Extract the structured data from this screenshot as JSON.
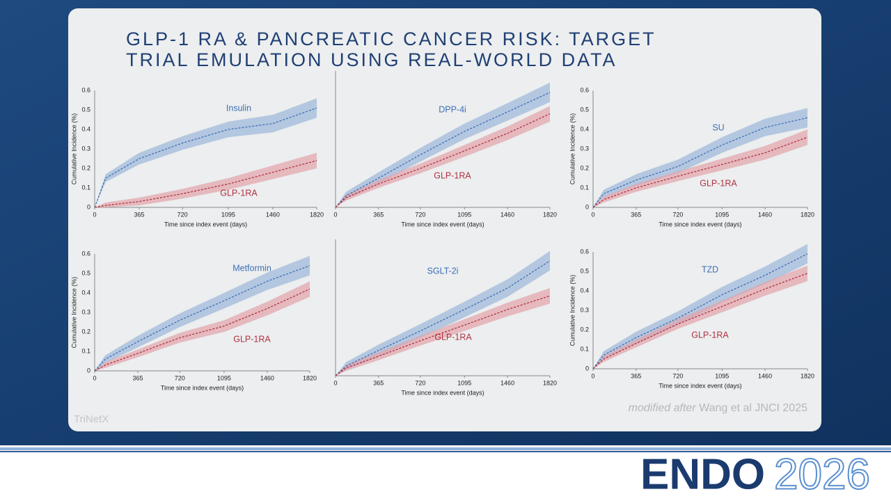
{
  "title": "GLP-1 RA & PANCREATIC CANCER RISK: TARGET TRIAL EMULATION USING REAL-WORLD DATA",
  "source_prefix": "modified after",
  "source": "Wang et al JNCI 2025",
  "watermark": "TriNetX",
  "logo": {
    "name": "ENDO",
    "year": "2026"
  },
  "chart_data": [
    {
      "type": "line",
      "x_label": "Time since index event (days)",
      "y_label": "Cumulative Incidence (%)",
      "x": [
        0,
        90,
        365,
        720,
        1095,
        1460,
        1820
      ],
      "xlim": [
        0,
        1820
      ],
      "xticks": [
        0,
        365,
        720,
        1095,
        1460,
        1820
      ],
      "ylim": [
        0,
        0.6
      ],
      "yticks": [
        0,
        0.1,
        0.2,
        0.3,
        0.4,
        0.5,
        0.6
      ],
      "series": [
        {
          "name": "Insulin",
          "color": "#3d6fb6",
          "values": [
            0,
            0.15,
            0.25,
            0.33,
            0.4,
            0.43,
            0.51
          ],
          "lower": [
            0,
            0.13,
            0.22,
            0.295,
            0.36,
            0.385,
            0.46
          ],
          "upper": [
            0,
            0.17,
            0.28,
            0.365,
            0.44,
            0.475,
            0.56
          ]
        },
        {
          "name": "GLP-1RA",
          "color": "#b0303f",
          "values": [
            0,
            0.01,
            0.03,
            0.07,
            0.12,
            0.18,
            0.24
          ],
          "lower": [
            0,
            0,
            0.01,
            0.045,
            0.09,
            0.145,
            0.2
          ],
          "upper": [
            0,
            0.025,
            0.05,
            0.095,
            0.15,
            0.215,
            0.28
          ]
        }
      ]
    },
    {
      "type": "line",
      "x_label": "Time since index event (days)",
      "y_label": null,
      "x": [
        0,
        90,
        365,
        720,
        1095,
        1460,
        1820
      ],
      "xlim": [
        0,
        1820
      ],
      "xticks": [
        0,
        365,
        720,
        1095,
        1460,
        1820
      ],
      "ylim": [
        0,
        0.7
      ],
      "series": [
        {
          "name": "DPP-4i",
          "color": "#3d6fb6",
          "values": [
            0,
            0.06,
            0.15,
            0.27,
            0.39,
            0.49,
            0.59
          ],
          "lower": [
            0,
            0.04,
            0.12,
            0.235,
            0.35,
            0.445,
            0.54
          ],
          "upper": [
            0,
            0.08,
            0.18,
            0.305,
            0.43,
            0.535,
            0.64
          ]
        },
        {
          "name": "GLP-1RA",
          "color": "#b0303f",
          "values": [
            0,
            0.05,
            0.12,
            0.2,
            0.29,
            0.38,
            0.48
          ],
          "lower": [
            0,
            0.035,
            0.1,
            0.175,
            0.26,
            0.345,
            0.44
          ],
          "upper": [
            0,
            0.065,
            0.14,
            0.225,
            0.32,
            0.415,
            0.52
          ]
        }
      ]
    },
    {
      "type": "line",
      "x_label": "Time since index event (days)",
      "y_label": "Cumulative Incidence (%)",
      "x": [
        0,
        90,
        365,
        720,
        1095,
        1460,
        1820
      ],
      "xlim": [
        0,
        1820
      ],
      "xticks": [
        0,
        365,
        720,
        1095,
        1460,
        1820
      ],
      "ylim": [
        0,
        0.6
      ],
      "yticks": [
        0,
        0.1,
        0.2,
        0.3,
        0.4,
        0.5,
        0.6
      ],
      "series": [
        {
          "name": "SU",
          "color": "#3d6fb6",
          "values": [
            0,
            0.07,
            0.14,
            0.21,
            0.32,
            0.41,
            0.46
          ],
          "lower": [
            0,
            0.05,
            0.11,
            0.175,
            0.28,
            0.365,
            0.41
          ],
          "upper": [
            0,
            0.09,
            0.17,
            0.245,
            0.36,
            0.455,
            0.51
          ]
        },
        {
          "name": "GLP-1RA",
          "color": "#b0303f",
          "values": [
            0,
            0.04,
            0.1,
            0.16,
            0.22,
            0.28,
            0.36
          ],
          "lower": [
            0,
            0.025,
            0.08,
            0.135,
            0.19,
            0.245,
            0.32
          ],
          "upper": [
            0,
            0.055,
            0.12,
            0.185,
            0.25,
            0.315,
            0.4
          ]
        }
      ]
    },
    {
      "type": "line",
      "x_label": "Time since index event (days)",
      "y_label": "Cumulative Incidence (%)",
      "x": [
        0,
        90,
        365,
        720,
        1095,
        1460,
        1820
      ],
      "xlim": [
        0,
        1820
      ],
      "xticks": [
        0,
        365,
        720,
        1095,
        1460,
        1820
      ],
      "ylim": [
        0,
        0.6
      ],
      "yticks": [
        0,
        0.1,
        0.2,
        0.3,
        0.4,
        0.5,
        0.6
      ],
      "series": [
        {
          "name": "Metformin",
          "color": "#3d6fb6",
          "values": [
            0,
            0.06,
            0.15,
            0.26,
            0.36,
            0.46,
            0.54
          ],
          "lower": [
            0,
            0.04,
            0.12,
            0.225,
            0.32,
            0.415,
            0.49
          ],
          "upper": [
            0,
            0.08,
            0.18,
            0.295,
            0.4,
            0.505,
            0.59
          ]
        },
        {
          "name": "GLP-1RA",
          "color": "#b0303f",
          "values": [
            0,
            0.03,
            0.09,
            0.17,
            0.23,
            0.32,
            0.42
          ],
          "lower": [
            0,
            0.015,
            0.07,
            0.145,
            0.2,
            0.285,
            0.38
          ],
          "upper": [
            0,
            0.045,
            0.11,
            0.195,
            0.26,
            0.355,
            0.46
          ]
        }
      ]
    },
    {
      "type": "line",
      "x_label": "Time since index event (days)",
      "y_label": null,
      "x": [
        0,
        90,
        365,
        720,
        1095,
        1460,
        1820
      ],
      "xlim": [
        0,
        1820
      ],
      "xticks": [
        0,
        365,
        720,
        1095,
        1460,
        1820
      ],
      "ylim": [
        0,
        0.7
      ],
      "series": [
        {
          "name": "SGLT-2i",
          "color": "#3d6fb6",
          "values": [
            0,
            0.05,
            0.13,
            0.23,
            0.34,
            0.45,
            0.59
          ],
          "lower": [
            0,
            0.03,
            0.1,
            0.195,
            0.3,
            0.405,
            0.54
          ],
          "upper": [
            0,
            0.07,
            0.16,
            0.265,
            0.38,
            0.495,
            0.64
          ]
        },
        {
          "name": "GLP-1RA",
          "color": "#b0303f",
          "values": [
            0,
            0.04,
            0.1,
            0.18,
            0.26,
            0.34,
            0.41
          ],
          "lower": [
            0,
            0.025,
            0.08,
            0.155,
            0.23,
            0.305,
            0.37
          ],
          "upper": [
            0,
            0.055,
            0.12,
            0.205,
            0.29,
            0.375,
            0.45
          ]
        }
      ]
    },
    {
      "type": "line",
      "x_label": "Time since index event (days)",
      "y_label": "Cumulative Incidence (%)",
      "x": [
        0,
        90,
        365,
        720,
        1095,
        1460,
        1820
      ],
      "xlim": [
        0,
        1820
      ],
      "xticks": [
        0,
        365,
        720,
        1095,
        1460,
        1820
      ],
      "ylim": [
        0,
        0.6
      ],
      "yticks": [
        0,
        0.1,
        0.2,
        0.3,
        0.4,
        0.5,
        0.6
      ],
      "series": [
        {
          "name": "TZD",
          "color": "#3d6fb6",
          "values": [
            0,
            0.07,
            0.16,
            0.26,
            0.38,
            0.48,
            0.59
          ],
          "lower": [
            0,
            0.05,
            0.13,
            0.225,
            0.34,
            0.435,
            0.54
          ],
          "upper": [
            0,
            0.09,
            0.19,
            0.295,
            0.42,
            0.525,
            0.64
          ]
        },
        {
          "name": "GLP-1RA",
          "color": "#b0303f",
          "values": [
            0,
            0.05,
            0.13,
            0.23,
            0.32,
            0.41,
            0.49
          ],
          "lower": [
            0,
            0.035,
            0.11,
            0.205,
            0.29,
            0.375,
            0.45
          ],
          "upper": [
            0,
            0.065,
            0.15,
            0.255,
            0.35,
            0.445,
            0.53
          ]
        }
      ]
    }
  ]
}
